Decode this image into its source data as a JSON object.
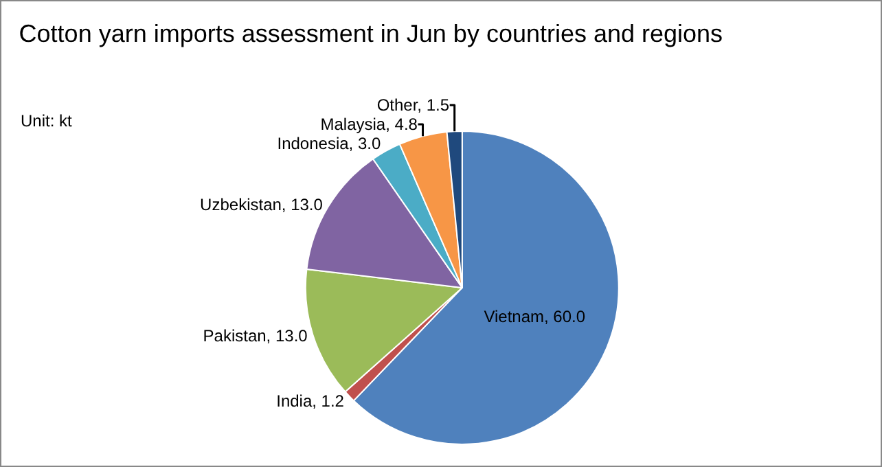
{
  "chart_data": {
    "type": "pie",
    "title": "Cotton yarn imports assessment in Jun by countries and regions",
    "annotations": [
      "Unit: kt"
    ],
    "categories": [
      "Vietnam",
      "India",
      "Pakistan",
      "Uzbekistan",
      "Indonesia",
      "Malaysia",
      "Other"
    ],
    "values": [
      60.0,
      1.2,
      13.0,
      13.0,
      3.0,
      4.8,
      1.5
    ],
    "value_labels": [
      "60.0",
      "1.2",
      "13.0",
      "13.0",
      "3.0",
      "4.8",
      "1.5"
    ],
    "colors": [
      "#4f81bd",
      "#c0504d",
      "#9bbb59",
      "#8064a2",
      "#4bacc6",
      "#f79646",
      "#1f497d"
    ],
    "legend": false
  }
}
